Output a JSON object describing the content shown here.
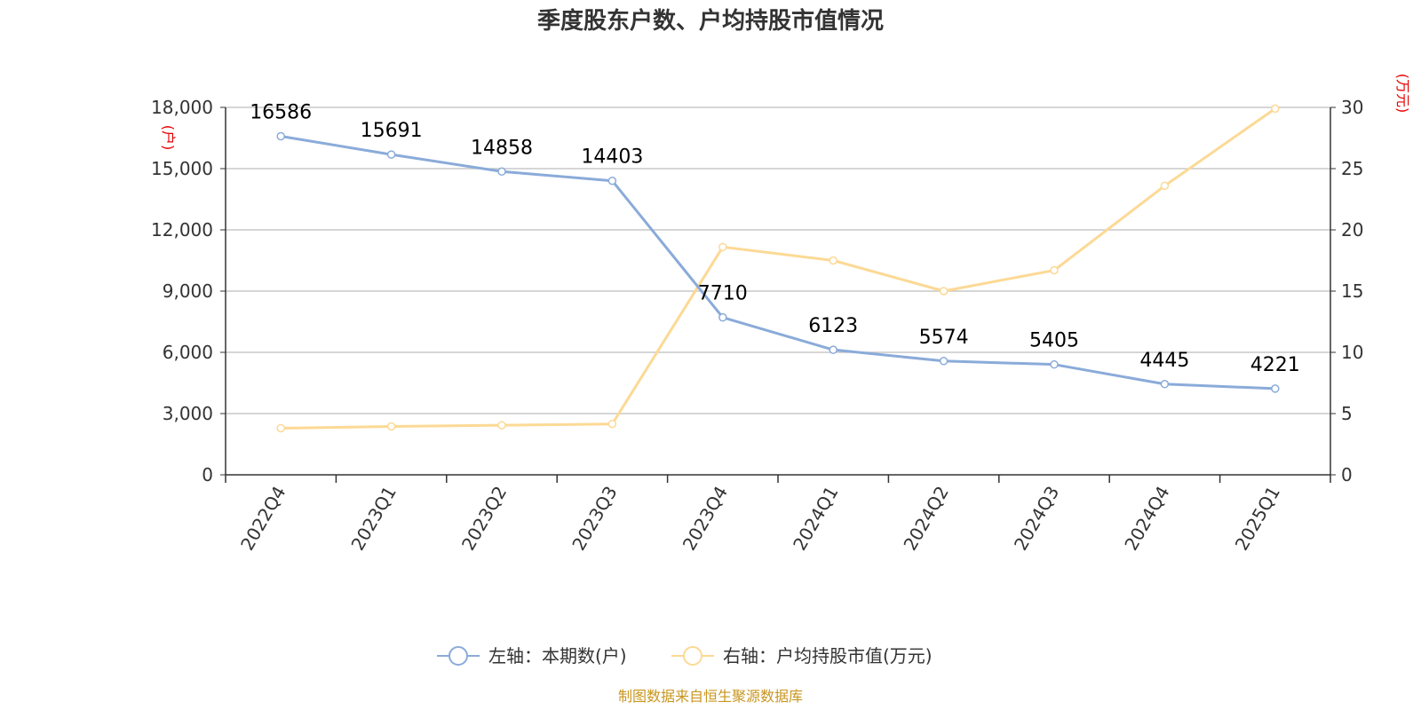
{
  "chart_data": {
    "type": "line",
    "title": "季度股东户数、户均持股市值情况",
    "categories": [
      "2022Q4",
      "2023Q1",
      "2023Q2",
      "2023Q3",
      "2023Q4",
      "2024Q1",
      "2024Q2",
      "2024Q3",
      "2024Q4",
      "2025Q1"
    ],
    "left_axis": {
      "unit": "(户)",
      "ylim": [
        0,
        18000
      ],
      "ticks": [
        "0",
        "3,000",
        "6,000",
        "9,000",
        "12,000",
        "15,000",
        "18,000"
      ]
    },
    "right_axis": {
      "unit": "(万元)",
      "ylim": [
        0,
        30
      ],
      "ticks": [
        "0",
        "5",
        "10",
        "15",
        "20",
        "25",
        "30"
      ]
    },
    "series": [
      {
        "name": "左轴：本期数(户)",
        "axis": "left",
        "color": "#8aabd9",
        "values": [
          16586,
          15691,
          14858,
          14403,
          7710,
          6123,
          5574,
          5405,
          4445,
          4221
        ],
        "labels": [
          "16586",
          "15691",
          "14858",
          "14403",
          "7710",
          "6123",
          "5574",
          "5405",
          "4445",
          "4221"
        ]
      },
      {
        "name": "右轴：户均持股市值(万元)",
        "axis": "right",
        "color": "#fcd995",
        "values": [
          3.8,
          3.95,
          4.05,
          4.15,
          18.6,
          17.5,
          15.0,
          16.7,
          23.6,
          29.9
        ]
      }
    ],
    "grid": true,
    "legend_position": "bottom",
    "source": "制图数据来自恒生聚源数据库"
  }
}
